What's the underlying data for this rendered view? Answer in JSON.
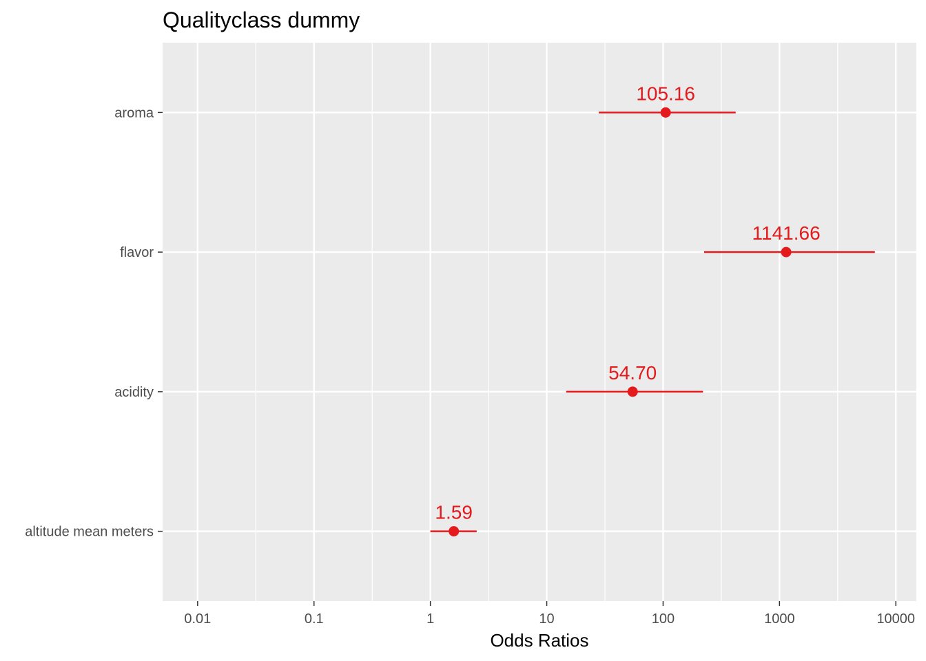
{
  "chart_data": {
    "type": "scatter",
    "title": "Qualityclass dummy",
    "xlabel": "Odds Ratios",
    "ylabel": "",
    "x_scale": "log10",
    "xlim": [
      0.005,
      15000
    ],
    "x_ticks": [
      {
        "value": 0.01,
        "label": "0.01"
      },
      {
        "value": 0.1,
        "label": "0.1"
      },
      {
        "value": 1,
        "label": "1"
      },
      {
        "value": 10,
        "label": "10"
      },
      {
        "value": 100,
        "label": "100"
      },
      {
        "value": 1000,
        "label": "1000"
      },
      {
        "value": 10000,
        "label": "10000"
      }
    ],
    "categories": [
      "aroma",
      "flavor",
      "acidity",
      "altitude mean meters"
    ],
    "series": [
      {
        "points": [
          {
            "category": "aroma",
            "estimate": 105.16,
            "ci_low": 28,
            "ci_high": 420,
            "label": "105.16"
          },
          {
            "category": "flavor",
            "estimate": 1141.66,
            "ci_low": 225,
            "ci_high": 6600,
            "label": "1141.66"
          },
          {
            "category": "acidity",
            "estimate": 54.7,
            "ci_low": 14.7,
            "ci_high": 220,
            "label": "54.70"
          },
          {
            "category": "altitude mean meters",
            "estimate": 1.59,
            "ci_low": 1.0,
            "ci_high": 2.5,
            "label": "1.59"
          }
        ]
      }
    ],
    "grid": true,
    "legend": "none",
    "colors": {
      "panel_background": "#ebebeb",
      "grid_line": "#ffffff",
      "point": "#e41a1c"
    }
  }
}
